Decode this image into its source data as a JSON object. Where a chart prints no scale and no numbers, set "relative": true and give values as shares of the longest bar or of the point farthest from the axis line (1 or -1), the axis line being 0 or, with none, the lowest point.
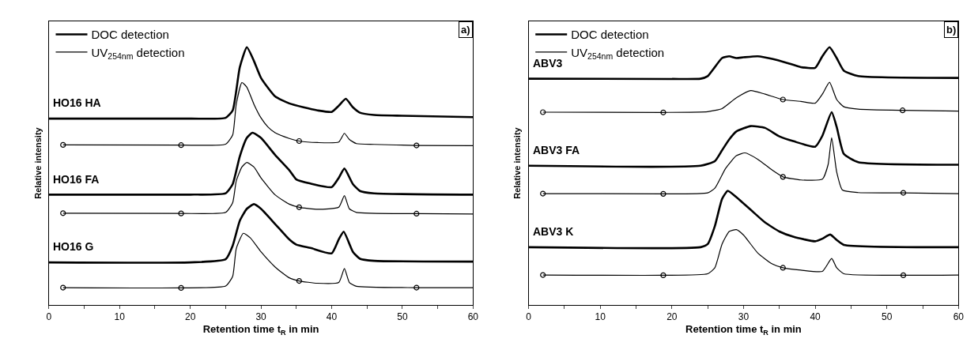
{
  "chart_data": [
    {
      "type": "line",
      "relative": true,
      "xlabel": "Retention time t$_{R}$ in min",
      "ylabel": "Relative intensity",
      "xlim": [
        0,
        60
      ],
      "xticks": [
        0,
        {
          "value": 5,
          "label": null
        },
        10,
        {
          "value": 15,
          "label": null
        },
        20,
        {
          "value": 25,
          "label": null
        },
        30,
        {
          "value": 35,
          "label": null
        },
        40,
        {
          "value": 45,
          "label": null
        },
        50,
        {
          "value": 55,
          "label": null
        },
        60
      ],
      "tick_labels": "x",
      "legend": "top left",
      "annotations": [
        "a)",
        "HO16 HA",
        "HO16 FA",
        "HO16 G"
      ],
      "series": [
        {
          "name": "DOC detection",
          "color": "#000000",
          "marker": "none",
          "x": [
            0,
            20,
            25,
            26,
            27,
            28,
            29,
            30,
            32,
            34,
            36,
            38,
            40,
            41,
            42,
            43,
            44,
            46,
            50,
            60
          ],
          "values": [
            0.723,
            0.723,
            0.726,
            0.755,
            0.922,
            1.0,
            0.947,
            0.881,
            0.809,
            0.782,
            0.767,
            0.755,
            0.749,
            0.773,
            0.8,
            0.767,
            0.746,
            0.737,
            0.734,
            0.729
          ]
        },
        {
          "name": "UV$_{254nm}$ detection",
          "color": "#000000",
          "marker": "none",
          "x": [
            2,
            18.7,
            25,
            26,
            26.5,
            27.3,
            28,
            29,
            30,
            31,
            32,
            34,
            35.4,
            38,
            41,
            41.8,
            42.5,
            43.5,
            46,
            52,
            60
          ],
          "values": [
            0.621,
            0.62,
            0.624,
            0.66,
            0.779,
            0.863,
            0.845,
            0.779,
            0.726,
            0.69,
            0.668,
            0.646,
            0.636,
            0.63,
            0.632,
            0.666,
            0.642,
            0.626,
            0.623,
            0.619,
            0.618
          ]
        },
        {
          "color": "#000000",
          "marker": "none",
          "x": [
            0,
            20,
            25,
            26,
            27,
            28,
            28.8,
            30,
            32,
            34,
            35,
            37,
            40,
            41,
            41.8,
            43,
            44,
            46,
            60
          ],
          "values": [
            0.428,
            0.428,
            0.433,
            0.469,
            0.576,
            0.648,
            0.668,
            0.648,
            0.582,
            0.523,
            0.487,
            0.471,
            0.457,
            0.493,
            0.529,
            0.469,
            0.442,
            0.433,
            0.428
          ]
        },
        {
          "color": "#000000",
          "marker": "none",
          "x": [
            2,
            18.7,
            25,
            26,
            26.5,
            27.3,
            28,
            29,
            30,
            32,
            34,
            35.4,
            38,
            41,
            41.8,
            42.5,
            43.5,
            52,
            60
          ],
          "values": [
            0.356,
            0.355,
            0.359,
            0.397,
            0.481,
            0.535,
            0.553,
            0.535,
            0.493,
            0.427,
            0.391,
            0.379,
            0.371,
            0.379,
            0.424,
            0.373,
            0.359,
            0.354,
            0.353
          ]
        },
        {
          "color": "#000000",
          "marker": "none",
          "x": [
            0,
            20,
            25,
            26,
            27,
            28,
            29,
            30,
            32,
            34,
            35,
            37,
            40,
            41,
            41.7,
            43,
            44,
            46,
            60
          ],
          "values": [
            0.165,
            0.165,
            0.177,
            0.23,
            0.326,
            0.373,
            0.391,
            0.373,
            0.314,
            0.254,
            0.234,
            0.221,
            0.2,
            0.254,
            0.284,
            0.206,
            0.179,
            0.171,
            0.168
          ]
        },
        {
          "color": "#000000",
          "marker": "none",
          "x": [
            2,
            18.7,
            25,
            26,
            26.5,
            27.5,
            28.5,
            30,
            32,
            34,
            35.4,
            38,
            41,
            41.8,
            42.5,
            43.5,
            52,
            60
          ],
          "values": [
            0.067,
            0.066,
            0.073,
            0.111,
            0.218,
            0.278,
            0.26,
            0.206,
            0.147,
            0.105,
            0.093,
            0.084,
            0.087,
            0.141,
            0.087,
            0.072,
            0.067,
            0.067
          ]
        },
        {
          "type": "scatter",
          "color": "#000000",
          "marker": "circle",
          "x": [
            2,
            18.7,
            35.4,
            52,
            2,
            18.7,
            35.4,
            52,
            2,
            18.7,
            35.4,
            52
          ],
          "values": [
            0.621,
            0.62,
            0.636,
            0.619,
            0.356,
            0.355,
            0.379,
            0.354,
            0.067,
            0.066,
            0.093,
            0.067
          ]
        }
      ]
    },
    {
      "type": "line",
      "relative": true,
      "xlabel": "Retention time t$_{R}$ in min",
      "ylabel": "Relative intensity",
      "xlim": [
        0,
        60
      ],
      "xticks": [
        0,
        {
          "value": 5,
          "label": null
        },
        10,
        {
          "value": 15,
          "label": null
        },
        20,
        {
          "value": 25,
          "label": null
        },
        30,
        {
          "value": 35,
          "label": null
        },
        40,
        {
          "value": 45,
          "label": null
        },
        50,
        {
          "value": 55,
          "label": null
        },
        60
      ],
      "tick_labels": "x",
      "legend": "top left",
      "annotations": [
        "b)",
        "ABV3",
        "ABV3 FA",
        "ABV3 K"
      ],
      "series": [
        {
          "name": "DOC detection",
          "color": "#000000",
          "marker": "none",
          "x": [
            0,
            20,
            24,
            25,
            26,
            27,
            28,
            29,
            30,
            32,
            34,
            36,
            38,
            40,
            41,
            42,
            43,
            44,
            46,
            60
          ],
          "values": [
            0.878,
            0.877,
            0.878,
            0.888,
            0.923,
            0.958,
            0.965,
            0.958,
            0.961,
            0.965,
            0.955,
            0.94,
            0.923,
            0.92,
            0.965,
            1.0,
            0.958,
            0.909,
            0.888,
            0.881
          ]
        },
        {
          "name": "UV$_{254nm}$ detection",
          "color": "#000000",
          "marker": "none",
          "x": [
            2,
            18.8,
            25,
            27,
            29,
            31,
            33,
            35.5,
            38,
            40,
            41,
            42,
            43,
            44,
            46,
            52.2,
            60
          ],
          "values": [
            0.748,
            0.747,
            0.75,
            0.762,
            0.804,
            0.832,
            0.818,
            0.797,
            0.79,
            0.783,
            0.818,
            0.864,
            0.797,
            0.769,
            0.76,
            0.755,
            0.752
          ]
        },
        {
          "color": "#000000",
          "marker": "none",
          "x": [
            0,
            24,
            26,
            27,
            28,
            29,
            31,
            33,
            35,
            37,
            40,
            41,
            42.3,
            43,
            44,
            46,
            60
          ],
          "values": [
            0.54,
            0.54,
            0.558,
            0.6,
            0.642,
            0.673,
            0.694,
            0.687,
            0.654,
            0.635,
            0.614,
            0.656,
            0.748,
            0.691,
            0.586,
            0.554,
            0.544
          ]
        },
        {
          "color": "#000000",
          "marker": "none",
          "x": [
            2,
            18.8,
            25,
            26,
            27.5,
            29,
            30.2,
            32,
            34,
            35.5,
            38,
            41,
            41.8,
            42.3,
            43,
            43.8,
            46,
            52.3,
            60
          ],
          "values": [
            0.432,
            0.431,
            0.435,
            0.453,
            0.53,
            0.579,
            0.59,
            0.565,
            0.523,
            0.497,
            0.485,
            0.488,
            0.544,
            0.649,
            0.516,
            0.446,
            0.436,
            0.435,
            0.432
          ]
        },
        {
          "color": "#000000",
          "marker": "none",
          "x": [
            0,
            24,
            25,
            26,
            27,
            27.8,
            29,
            31,
            33,
            35,
            37,
            40,
            41,
            42.1,
            43,
            44,
            60
          ],
          "values": [
            0.224,
            0.224,
            0.236,
            0.306,
            0.411,
            0.443,
            0.418,
            0.369,
            0.32,
            0.285,
            0.264,
            0.247,
            0.257,
            0.273,
            0.252,
            0.233,
            0.224
          ]
        },
        {
          "color": "#000000",
          "marker": "none",
          "x": [
            2,
            18.8,
            25,
            26,
            27,
            28,
            29,
            30,
            32,
            34,
            35.5,
            38,
            41,
            42.3,
            43,
            44,
            52.3,
            60
          ],
          "values": [
            0.116,
            0.115,
            0.121,
            0.144,
            0.236,
            0.285,
            0.292,
            0.271,
            0.201,
            0.159,
            0.144,
            0.135,
            0.13,
            0.18,
            0.144,
            0.121,
            0.115,
            0.116
          ]
        },
        {
          "type": "scatter",
          "color": "#000000",
          "marker": "circle",
          "x": [
            2,
            18.8,
            35.5,
            52.2,
            2,
            18.8,
            35.5,
            52.3,
            2,
            18.8,
            35.5,
            52.3
          ],
          "values": [
            0.748,
            0.747,
            0.797,
            0.755,
            0.432,
            0.431,
            0.497,
            0.435,
            0.116,
            0.115,
            0.144,
            0.115
          ]
        }
      ]
    }
  ]
}
